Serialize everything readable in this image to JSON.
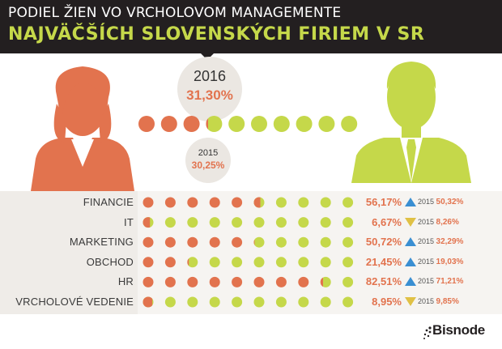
{
  "header": {
    "line1": "PODIEL ŽIEN VO VRCHOLOVOM MANAGEMENTE",
    "line2": "NAJVÄČŠÍCH SLOVENSKÝCH FIRIEM  V SR"
  },
  "highlight": {
    "year": "2016",
    "value": "31,30%",
    "prev_year": "2015",
    "prev_value": "30,25%"
  },
  "colors": {
    "women": "#e2734e",
    "men": "#c5d84a",
    "up": "#3a8fd2",
    "down": "#e0c145",
    "header_bg": "#231f20"
  },
  "icons": [
    "woman-icon",
    "man-icon",
    "trend-up-icon",
    "trend-down-icon"
  ],
  "chart_data": {
    "type": "table",
    "overall": {
      "2016": 31.3,
      "2015": 30.25
    },
    "rows": [
      {
        "category": "FINANCIE",
        "value": 56.17,
        "value_label": "56,17%",
        "trend": "up",
        "prev_year": "2015",
        "prev_label": "50,32%",
        "prev": 50.32
      },
      {
        "category": "IT",
        "value": 6.67,
        "value_label": "6,67%",
        "trend": "down",
        "prev_year": "2015",
        "prev_label": "8,26%",
        "prev": 8.26
      },
      {
        "category": "MARKETING",
        "value": 50.72,
        "value_label": "50,72%",
        "trend": "up",
        "prev_year": "2015",
        "prev_label": "32,29%",
        "prev": 32.29
      },
      {
        "category": "OBCHOD",
        "value": 21.45,
        "value_label": "21,45%",
        "trend": "up",
        "prev_year": "2015",
        "prev_label": "19,03%",
        "prev": 19.03
      },
      {
        "category": "HR",
        "value": 82.51,
        "value_label": "82,51%",
        "trend": "up",
        "prev_year": "2015",
        "prev_label": "71,21%",
        "prev": 71.21
      },
      {
        "category": "VRCHOLOVÉ VEDENIE",
        "value": 8.95,
        "value_label": "8,95%",
        "trend": "down",
        "prev_year": "2015",
        "prev_label": "9,85%",
        "prev": 9.85
      }
    ]
  },
  "brand": {
    "logo_text": "Bisnode"
  }
}
